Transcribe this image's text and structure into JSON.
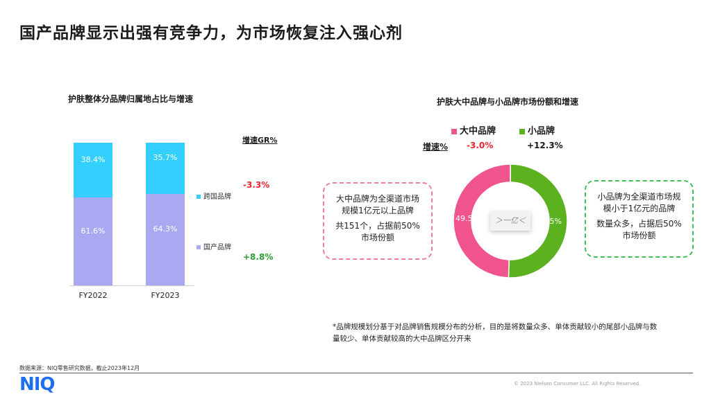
{
  "page": {
    "title": "国产品牌显示出强有竞争力，为市场恢复注入强心剂",
    "footnote_line1": "*品牌规模划分基于对品牌销售规模分布的分析，目的是将数量众多、单体贡献较小的尾部小品牌与数",
    "footnote_line2": "量较少、单体贡献较高的大中品牌区分开来",
    "source": "数据来源：NIQ零售研究数据，截止2023年12月",
    "copyright": "© 2023 Nielsen Consumer LLC. All Rights Reserved.",
    "logo": "NIQ"
  },
  "colors": {
    "overseas": "#33cfff",
    "domestic": "#a9a9f2",
    "big": "#f0548c",
    "small": "#5cb21e",
    "red": "#e8262f",
    "green": "#2f9e34"
  },
  "chart_data": [
    {
      "type": "bar",
      "stacked": true,
      "title": "护肤整体分品牌归属地占比与增速",
      "categories": [
        "FY2022",
        "FY2023"
      ],
      "series": [
        {
          "name": "国产品牌",
          "values": [
            61.6,
            64.3
          ],
          "labels": [
            "61.6%",
            "64.3%"
          ],
          "growth": "+8.8%"
        },
        {
          "name": "跨国品牌",
          "values": [
            38.4,
            35.7
          ],
          "labels": [
            "38.4%",
            "35.7%"
          ],
          "growth": "-3.3%"
        }
      ],
      "growth_header": "增速GR%",
      "ylim": [
        0,
        100
      ],
      "legend": "right"
    },
    {
      "type": "pie",
      "donut": true,
      "title": "护肤大中品牌与小品牌市场份额和增速",
      "slices": [
        {
          "name": "大中品牌",
          "value": 49.5,
          "label": "49.5%",
          "growth": "-3.0%",
          "note_lines": [
            "大中品牌为全渠道市场",
            "规模1亿元以上品牌",
            "共151个，占据前50%",
            "市场份额"
          ]
        },
        {
          "name": "小品牌",
          "value": 50.5,
          "label": "50.5%",
          "growth": "+12.3%",
          "note_lines": [
            "小品牌为全渠道市场规",
            "模小于1亿元的品牌",
            "数量众多，占据后50%",
            "市场份额"
          ]
        }
      ],
      "growth_label": "增速%",
      "center_label": "＞一亿＜",
      "legend": "top"
    }
  ]
}
